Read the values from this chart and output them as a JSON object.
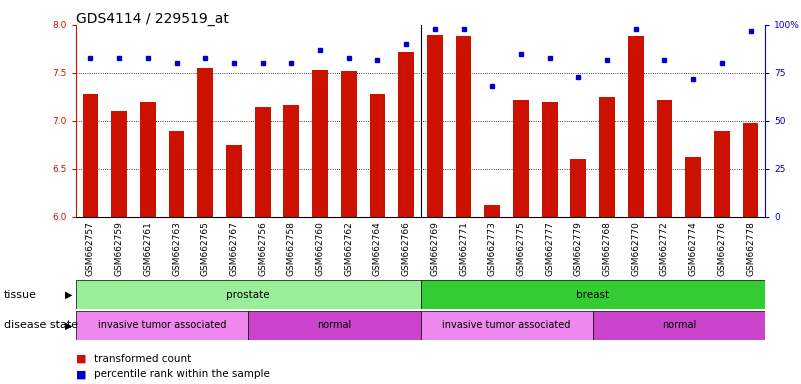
{
  "title": "GDS4114 / 229519_at",
  "samples": [
    "GSM662757",
    "GSM662759",
    "GSM662761",
    "GSM662763",
    "GSM662765",
    "GSM662767",
    "GSM662756",
    "GSM662758",
    "GSM662760",
    "GSM662762",
    "GSM662764",
    "GSM662766",
    "GSM662769",
    "GSM662771",
    "GSM662773",
    "GSM662775",
    "GSM662777",
    "GSM662779",
    "GSM662768",
    "GSM662770",
    "GSM662772",
    "GSM662774",
    "GSM662776",
    "GSM662778"
  ],
  "transformed_count": [
    7.28,
    7.1,
    7.2,
    6.9,
    7.55,
    6.75,
    7.15,
    7.17,
    7.53,
    7.52,
    7.28,
    7.72,
    7.9,
    7.88,
    6.12,
    7.22,
    7.2,
    6.6,
    7.25,
    7.88,
    7.22,
    6.62,
    6.9,
    6.98
  ],
  "percentile_rank": [
    83,
    83,
    83,
    80,
    83,
    80,
    80,
    80,
    87,
    83,
    82,
    90,
    98,
    98,
    68,
    85,
    83,
    73,
    82,
    98,
    82,
    72,
    80,
    97
  ],
  "bar_color": "#cc1100",
  "dot_color": "#0000cc",
  "ylim_left": [
    6.0,
    8.0
  ],
  "ylim_right": [
    0,
    100
  ],
  "yticks_left": [
    6.0,
    6.5,
    7.0,
    7.5,
    8.0
  ],
  "yticks_right": [
    0,
    25,
    50,
    75,
    100
  ],
  "tissue_groups": [
    {
      "label": "prostate",
      "start": 0,
      "end": 11,
      "color": "#99ee99"
    },
    {
      "label": "breast",
      "start": 12,
      "end": 23,
      "color": "#33cc33"
    }
  ],
  "disease_groups": [
    {
      "label": "invasive tumor associated",
      "start": 0,
      "end": 5,
      "color": "#ee88ee"
    },
    {
      "label": "normal",
      "start": 6,
      "end": 11,
      "color": "#cc44cc"
    },
    {
      "label": "invasive tumor associated",
      "start": 12,
      "end": 17,
      "color": "#ee88ee"
    },
    {
      "label": "normal",
      "start": 18,
      "end": 23,
      "color": "#cc44cc"
    }
  ],
  "legend_items": [
    {
      "label": "transformed count",
      "color": "#cc1100"
    },
    {
      "label": "percentile rank within the sample",
      "color": "#0000cc"
    }
  ],
  "ylabel_left_color": "#cc1100",
  "ylabel_right_color": "#0000cc",
  "background_color": "#ffffff",
  "title_fontsize": 10,
  "tick_fontsize": 6.5,
  "label_fontsize": 8,
  "annot_fontsize": 7.5
}
